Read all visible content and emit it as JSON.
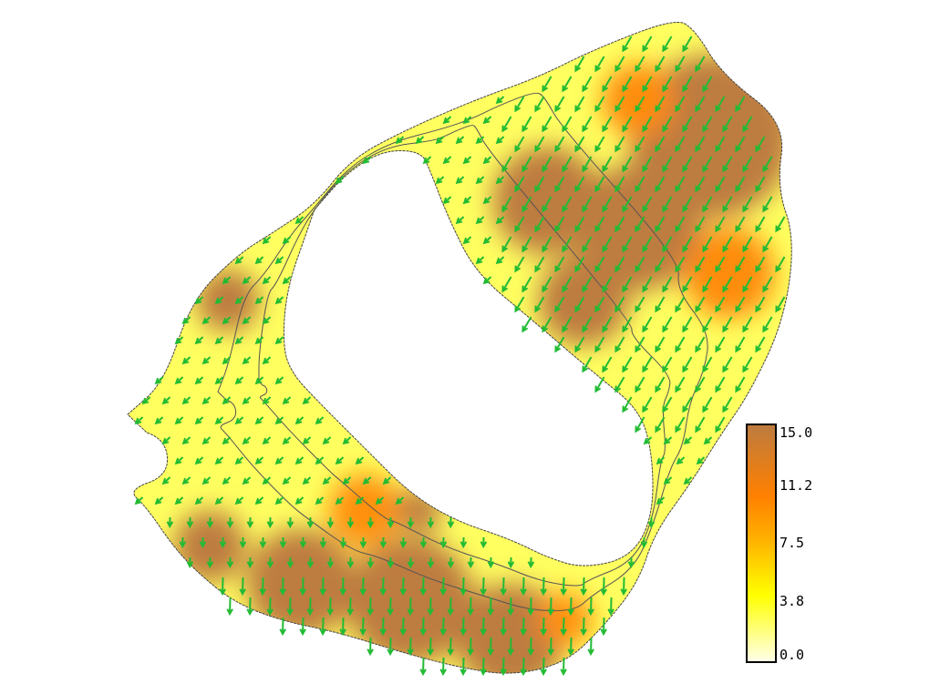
{
  "colorbar": {
    "ticks": [
      "15.0",
      "11.2",
      "7.5",
      "3.8",
      "0.0"
    ],
    "min": 0.0,
    "max": 15.0,
    "colors": [
      "#ffffe8",
      "#ffff00",
      "#ffb000",
      "#ff8000",
      "#bd7b3f"
    ]
  },
  "vectors": {
    "color": "#22bb33",
    "icon": "arrow-icon"
  },
  "outline_color": "#444444"
}
